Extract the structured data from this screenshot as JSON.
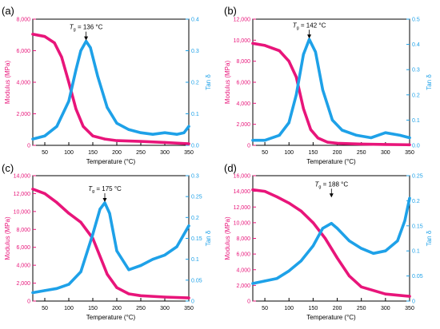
{
  "colors": {
    "modulus": "#e8157a",
    "tan": "#1ea1e8"
  },
  "chart_data": [
    {
      "type": "line",
      "panel_label": "(a)",
      "xlabel": "Temperature (°C)",
      "ylabel_left": "Modulus (MPa)",
      "ylabel_right": "Tan δ",
      "x_ticks": [
        50,
        100,
        150,
        200,
        250,
        300,
        350
      ],
      "xlim": [
        25,
        350
      ],
      "y_left_ticks": [
        "0",
        "2,000",
        "4,000",
        "6,000",
        "8,000"
      ],
      "y_left_lim": [
        0,
        8000
      ],
      "y_right_ticks": [
        "0.0",
        "0.1",
        "0.2",
        "0.3",
        "0.4"
      ],
      "y_right_lim": [
        0,
        0.4
      ],
      "tg_prefix": "T",
      "tg_sub": "g",
      "tg_text": " = 136 °C",
      "tg": 136,
      "series": [
        {
          "name": "Modulus",
          "axis": "left",
          "x": [
            25,
            50,
            70,
            85,
            100,
            115,
            130,
            150,
            175,
            200,
            250,
            300,
            350
          ],
          "y": [
            7050,
            6900,
            6500,
            5600,
            4000,
            2300,
            1200,
            600,
            400,
            300,
            250,
            180,
            100
          ]
        },
        {
          "name": "Tan δ",
          "axis": "right",
          "x": [
            25,
            50,
            75,
            100,
            115,
            125,
            136,
            145,
            160,
            180,
            200,
            225,
            250,
            275,
            300,
            325,
            340,
            345,
            350
          ],
          "y": [
            0.02,
            0.03,
            0.06,
            0.14,
            0.24,
            0.3,
            0.33,
            0.31,
            0.22,
            0.12,
            0.07,
            0.05,
            0.04,
            0.035,
            0.04,
            0.035,
            0.04,
            0.05,
            0.06
          ]
        }
      ]
    },
    {
      "type": "line",
      "panel_label": "(b)",
      "xlabel": "Temperature (°C)",
      "ylabel_left": "Modulus (MPa)",
      "ylabel_right": "Tan δ",
      "x_ticks": [
        50,
        100,
        150,
        200,
        250,
        300,
        350
      ],
      "xlim": [
        25,
        350
      ],
      "y_left_ticks": [
        "0",
        "2,000",
        "4,000",
        "6,000",
        "8,000",
        "10,000",
        "12,000"
      ],
      "y_left_lim": [
        0,
        12000
      ],
      "y_right_ticks": [
        "0.0",
        "0.1",
        "0.2",
        "0.3",
        "0.4",
        "0.5"
      ],
      "y_right_lim": [
        0,
        0.5
      ],
      "tg_prefix": "T",
      "tg_sub": "g",
      "tg_text": " = 142 °C",
      "tg": 142,
      "series": [
        {
          "name": "Modulus",
          "axis": "left",
          "x": [
            25,
            50,
            80,
            100,
            115,
            130,
            145,
            160,
            180,
            200,
            250,
            300,
            350
          ],
          "y": [
            9700,
            9500,
            9000,
            8000,
            6500,
            3500,
            1500,
            700,
            300,
            200,
            120,
            80,
            50
          ]
        },
        {
          "name": "Tan δ",
          "axis": "right",
          "x": [
            25,
            50,
            80,
            100,
            115,
            130,
            142,
            155,
            170,
            190,
            210,
            240,
            270,
            300,
            330,
            350
          ],
          "y": [
            0.02,
            0.02,
            0.04,
            0.09,
            0.2,
            0.36,
            0.42,
            0.37,
            0.22,
            0.1,
            0.06,
            0.04,
            0.03,
            0.05,
            0.04,
            0.03
          ]
        }
      ]
    },
    {
      "type": "line",
      "panel_label": "(c)",
      "xlabel": "Temperature (°C)",
      "ylabel_left": "Modulus (MPa)",
      "ylabel_right": "Tan δ",
      "x_ticks": [
        50,
        100,
        150,
        200,
        250,
        300,
        350
      ],
      "xlim": [
        25,
        350
      ],
      "y_left_ticks": [
        "0",
        "2,000",
        "4,000",
        "6,000",
        "8,000",
        "10,000",
        "12,000",
        "14,000"
      ],
      "y_left_lim": [
        0,
        14000
      ],
      "y_right_ticks": [
        "0",
        "0.05",
        "0.1",
        "0.15",
        "0.2",
        "0.25",
        "0.3"
      ],
      "y_right_lim": [
        0,
        0.3
      ],
      "tg_prefix": "T",
      "tg_sub": "g",
      "tg_text": " = 175 °C",
      "tg": 175,
      "series": [
        {
          "name": "Modulus",
          "axis": "left",
          "x": [
            25,
            50,
            75,
            100,
            125,
            150,
            165,
            180,
            200,
            225,
            250,
            300,
            350
          ],
          "y": [
            12500,
            12000,
            11000,
            9800,
            8800,
            7000,
            5000,
            3000,
            1500,
            800,
            600,
            450,
            350
          ]
        },
        {
          "name": "Tan δ",
          "axis": "right",
          "x": [
            25,
            50,
            75,
            100,
            125,
            150,
            165,
            175,
            185,
            200,
            225,
            250,
            275,
            300,
            325,
            350
          ],
          "y": [
            0.02,
            0.025,
            0.03,
            0.04,
            0.07,
            0.16,
            0.22,
            0.235,
            0.21,
            0.12,
            0.075,
            0.085,
            0.1,
            0.11,
            0.13,
            0.18
          ]
        }
      ]
    },
    {
      "type": "line",
      "panel_label": "(d)",
      "xlabel": "Temperature (°C)",
      "ylabel_left": "Modulus (MPa)",
      "ylabel_right": "Tan δ",
      "x_ticks": [
        50,
        100,
        150,
        200,
        250,
        300,
        350
      ],
      "xlim": [
        25,
        350
      ],
      "y_left_ticks": [
        "0",
        "2,000",
        "4,000",
        "6,000",
        "8,000",
        "10,000",
        "12,000",
        "14,000",
        "16,000"
      ],
      "y_left_lim": [
        0,
        16000
      ],
      "y_right_ticks": [
        "0",
        "0.05",
        "0.1",
        "0.15",
        "0.2",
        "0.25"
      ],
      "y_right_lim": [
        0,
        0.25
      ],
      "tg_prefix": "T",
      "tg_sub": "g",
      "tg_text": " = 188 °C",
      "tg": 188,
      "series": [
        {
          "name": "Modulus",
          "axis": "left",
          "x": [
            25,
            50,
            75,
            100,
            125,
            150,
            175,
            200,
            225,
            250,
            300,
            350
          ],
          "y": [
            14200,
            14000,
            13300,
            12500,
            11500,
            10000,
            8000,
            5500,
            3200,
            1800,
            900,
            600
          ]
        },
        {
          "name": "Tan δ",
          "axis": "right",
          "x": [
            25,
            50,
            75,
            100,
            125,
            150,
            170,
            188,
            200,
            225,
            250,
            275,
            300,
            325,
            340,
            350
          ],
          "y": [
            0.035,
            0.04,
            0.045,
            0.06,
            0.08,
            0.11,
            0.145,
            0.155,
            0.145,
            0.12,
            0.105,
            0.095,
            0.1,
            0.12,
            0.16,
            0.205
          ]
        }
      ]
    }
  ]
}
